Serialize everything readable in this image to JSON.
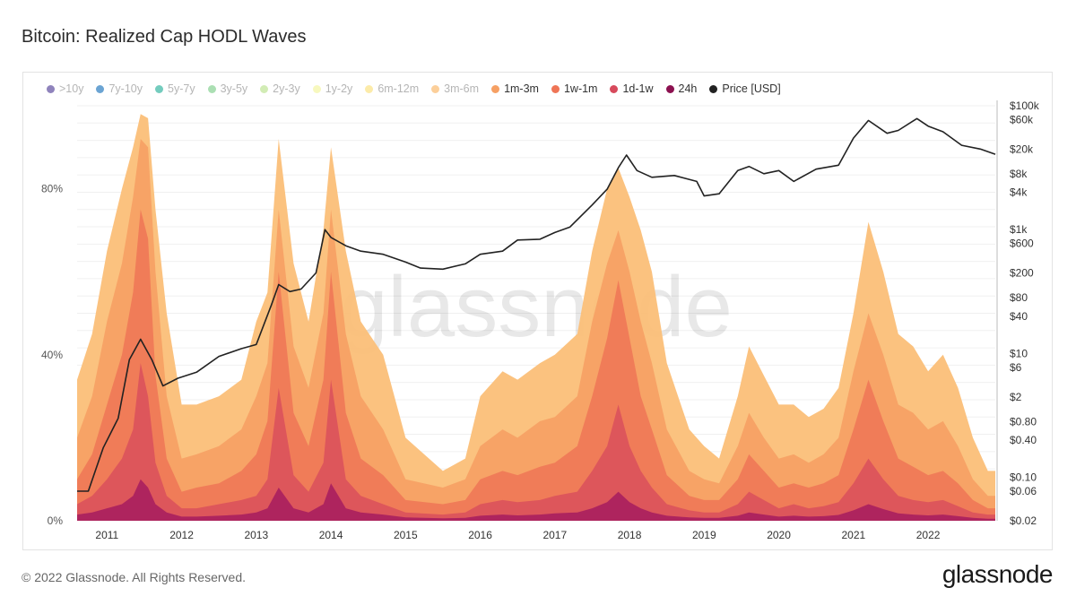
{
  "page": {
    "title": "Bitcoin: Realized Cap HODL Waves",
    "footer": "© 2022 Glassnode. All Rights Reserved.",
    "brand": "glassnode",
    "watermark": "glassnode"
  },
  "legend": [
    {
      "label": ">10y",
      "color": "#6a5aa6",
      "active": false
    },
    {
      "label": "7y-10y",
      "color": "#3a86c4",
      "active": false
    },
    {
      "label": "5y-7y",
      "color": "#45bba8",
      "active": false
    },
    {
      "label": "3y-5y",
      "color": "#8fd49a",
      "active": false
    },
    {
      "label": "2y-3y",
      "color": "#c3e69c",
      "active": false
    },
    {
      "label": "1y-2y",
      "color": "#f4f6a8",
      "active": false
    },
    {
      "label": "6m-12m",
      "color": "#fbe48c",
      "active": false
    },
    {
      "label": "3m-6m",
      "color": "#fbbf78",
      "active": false
    },
    {
      "label": "1m-3m",
      "color": "#f6a064",
      "active": true
    },
    {
      "label": "1w-1m",
      "color": "#ef7556",
      "active": true
    },
    {
      "label": "1d-1w",
      "color": "#d74a5c",
      "active": true
    },
    {
      "label": "24h",
      "color": "#8c1150",
      "active": true
    },
    {
      "label": "Price [USD]",
      "color": "#222222",
      "active": true
    }
  ],
  "chart_data": {
    "type": "area",
    "title": "Bitcoin: Realized Cap HODL Waves",
    "x_ticks": [
      "2011",
      "2012",
      "2013",
      "2014",
      "2015",
      "2016",
      "2017",
      "2018",
      "2019",
      "2020",
      "2021",
      "2022"
    ],
    "y_left_ticks": [
      "0%",
      "40%",
      "80%"
    ],
    "y_left_range": [
      0,
      100
    ],
    "y_right_ticks": [
      "$100k",
      "$60k",
      "$20k",
      "$8k",
      "$4k",
      "$1k",
      "$600",
      "$200",
      "$80",
      "$40",
      "$10",
      "$6",
      "$2",
      "$0.80",
      "$0.40",
      "$0.10",
      "$0.06",
      "$0.02"
    ],
    "y_right_scale": "log",
    "y_right_range": [
      0.02,
      100000
    ],
    "grid": true,
    "legend_position": "top",
    "x": [
      2010.6,
      2010.8,
      2011.0,
      2011.2,
      2011.35,
      2011.45,
      2011.55,
      2011.65,
      2011.8,
      2012.0,
      2012.2,
      2012.5,
      2012.8,
      2013.0,
      2013.15,
      2013.3,
      2013.5,
      2013.7,
      2013.9,
      2014.0,
      2014.2,
      2014.4,
      2014.7,
      2015.0,
      2015.5,
      2015.8,
      2016.0,
      2016.3,
      2016.5,
      2016.8,
      2017.0,
      2017.3,
      2017.5,
      2017.7,
      2017.85,
      2018.0,
      2018.15,
      2018.3,
      2018.5,
      2018.8,
      2019.0,
      2019.2,
      2019.45,
      2019.6,
      2019.8,
      2020.0,
      2020.2,
      2020.4,
      2020.6,
      2020.8,
      2021.0,
      2021.2,
      2021.4,
      2021.6,
      2021.8,
      2022.0,
      2022.2,
      2022.4,
      2022.6,
      2022.8,
      2022.9
    ],
    "series": [
      {
        "name": "3m-6m",
        "values": [
          34,
          45,
          65,
          80,
          90,
          98,
          97,
          75,
          50,
          28,
          28,
          30,
          34,
          48,
          55,
          92,
          62,
          48,
          70,
          90,
          65,
          48,
          40,
          20,
          12,
          15,
          30,
          36,
          34,
          38,
          40,
          45,
          65,
          80,
          85,
          78,
          70,
          60,
          38,
          22,
          18,
          15,
          30,
          42,
          35,
          28,
          28,
          25,
          27,
          32,
          50,
          72,
          60,
          45,
          42,
          36,
          40,
          32,
          20,
          12,
          12
        ]
      },
      {
        "name": "1m-3m",
        "values": [
          20,
          30,
          48,
          62,
          78,
          92,
          90,
          60,
          30,
          15,
          16,
          18,
          22,
          30,
          38,
          75,
          42,
          32,
          50,
          75,
          45,
          30,
          22,
          10,
          8,
          10,
          18,
          22,
          20,
          24,
          25,
          30,
          48,
          62,
          70,
          60,
          48,
          38,
          22,
          12,
          10,
          9,
          18,
          26,
          20,
          15,
          16,
          14,
          16,
          20,
          36,
          50,
          40,
          28,
          26,
          22,
          24,
          18,
          10,
          6,
          6
        ]
      },
      {
        "name": "1w-1m",
        "values": [
          10,
          16,
          28,
          40,
          55,
          75,
          68,
          35,
          15,
          7,
          8,
          9,
          12,
          16,
          24,
          60,
          26,
          18,
          34,
          60,
          26,
          15,
          11,
          5,
          4,
          5,
          10,
          12,
          11,
          13,
          14,
          18,
          30,
          44,
          58,
          44,
          30,
          22,
          11,
          6,
          5,
          5,
          10,
          16,
          12,
          8,
          9,
          8,
          9,
          11,
          22,
          34,
          24,
          15,
          13,
          11,
          12,
          9,
          5,
          3,
          3
        ]
      },
      {
        "name": "1d-1w",
        "values": [
          4,
          6,
          10,
          15,
          22,
          38,
          30,
          14,
          6,
          3,
          3,
          4,
          5,
          6,
          10,
          32,
          11,
          7,
          14,
          34,
          10,
          6,
          4,
          2,
          1.5,
          2,
          4,
          5,
          4.5,
          5,
          6,
          7,
          12,
          18,
          28,
          18,
          12,
          8,
          4,
          2.5,
          2,
          2,
          4,
          7,
          5,
          3,
          4,
          3,
          3.5,
          4.5,
          9,
          15,
          10,
          6,
          5,
          4.5,
          5,
          3.5,
          2,
          1.5,
          1.5
        ]
      },
      {
        "name": "24h",
        "values": [
          1.5,
          2,
          3,
          4,
          6,
          10,
          8,
          4,
          2,
          1,
          1,
          1.2,
          1.5,
          2,
          3,
          8,
          3,
          2,
          4,
          9,
          3,
          2,
          1.5,
          0.8,
          0.6,
          0.7,
          1.2,
          1.5,
          1.3,
          1.5,
          1.8,
          2,
          3,
          4.5,
          7,
          4.5,
          3,
          2,
          1.2,
          0.8,
          0.7,
          0.7,
          1.2,
          2,
          1.5,
          1,
          1.2,
          1,
          1.1,
          1.4,
          2.5,
          4,
          2.8,
          1.8,
          1.5,
          1.3,
          1.5,
          1.1,
          0.7,
          0.5,
          0.5
        ]
      }
    ],
    "price": {
      "name": "Price [USD]",
      "x": [
        2010.6,
        2010.75,
        2010.95,
        2011.15,
        2011.3,
        2011.45,
        2011.6,
        2011.75,
        2011.95,
        2012.2,
        2012.5,
        2012.8,
        2013.0,
        2013.2,
        2013.3,
        2013.45,
        2013.6,
        2013.8,
        2013.92,
        2014.0,
        2014.2,
        2014.4,
        2014.7,
        2015.0,
        2015.2,
        2015.5,
        2015.8,
        2016.0,
        2016.3,
        2016.5,
        2016.8,
        2017.0,
        2017.2,
        2017.5,
        2017.7,
        2017.85,
        2017.96,
        2018.1,
        2018.3,
        2018.6,
        2018.9,
        2019.0,
        2019.2,
        2019.45,
        2019.6,
        2019.8,
        2020.0,
        2020.2,
        2020.5,
        2020.8,
        2021.0,
        2021.2,
        2021.45,
        2021.6,
        2021.85,
        2022.0,
        2022.2,
        2022.45,
        2022.7,
        2022.9
      ],
      "values": [
        0.06,
        0.06,
        0.3,
        0.9,
        8,
        17,
        8,
        3,
        4,
        5,
        9,
        12,
        14,
        60,
        130,
        100,
        110,
        200,
        1000,
        750,
        550,
        450,
        400,
        300,
        240,
        230,
        280,
        400,
        450,
        680,
        700,
        900,
        1100,
        2500,
        4500,
        10000,
        16000,
        9000,
        7000,
        7500,
        6000,
        3500,
        3800,
        9000,
        10500,
        8000,
        9000,
        6000,
        9500,
        11000,
        30000,
        58000,
        36000,
        40000,
        62000,
        47000,
        38000,
        23000,
        20000,
        16500
      ]
    }
  }
}
